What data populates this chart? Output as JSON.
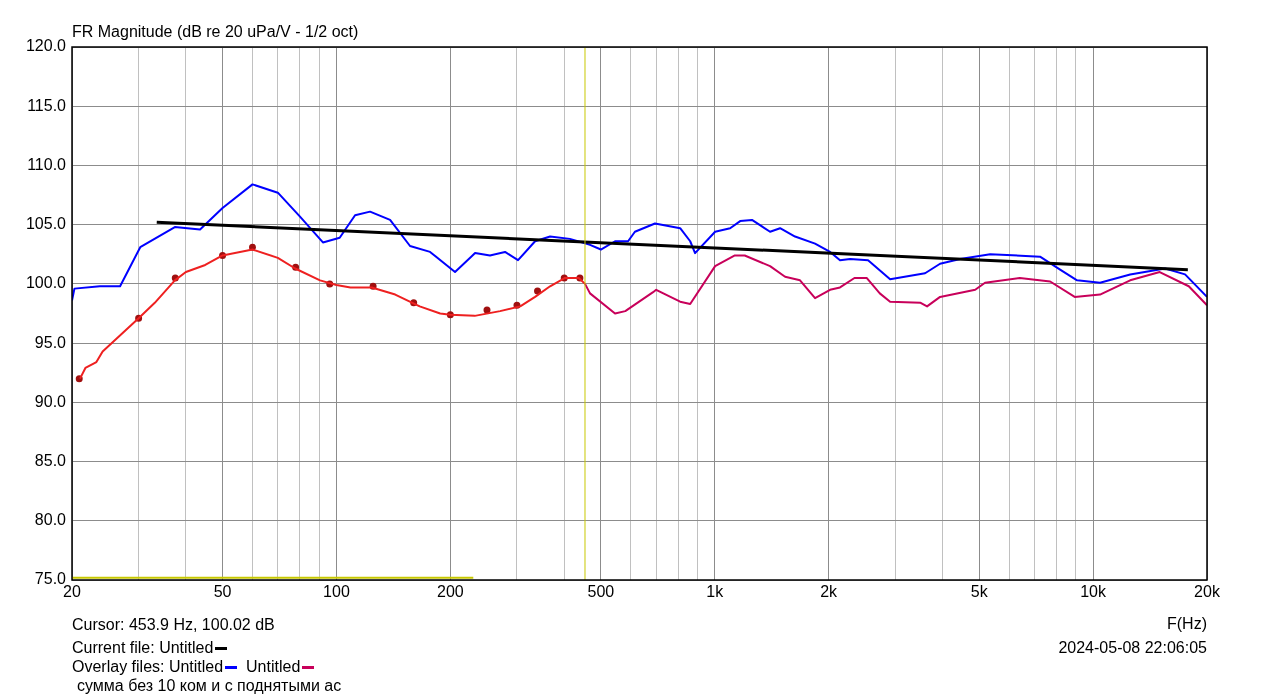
{
  "chart_data": {
    "type": "line",
    "title": "FR Magnitude (dB re 20 uPa/V - 1/2 oct)",
    "xlabel": "F(Hz)",
    "log": "x",
    "grid": true,
    "legend": "bottom left",
    "marker": "none",
    "line_style": "solid",
    "xlim": [
      20,
      20000
    ],
    "ylim": [
      75,
      120
    ],
    "xticks": [
      {
        "value": 20,
        "label": "20"
      },
      {
        "value": 30,
        "label": null
      },
      {
        "value": 40,
        "label": null
      },
      {
        "value": 50,
        "label": "50"
      },
      {
        "value": 60,
        "label": null
      },
      {
        "value": 70,
        "label": null
      },
      {
        "value": 80,
        "label": null
      },
      {
        "value": 90,
        "label": null
      },
      {
        "value": 100,
        "label": "100"
      },
      {
        "value": 200,
        "label": "200"
      },
      {
        "value": 300,
        "label": null
      },
      {
        "value": 400,
        "label": null
      },
      {
        "value": 500,
        "label": "500"
      },
      {
        "value": 600,
        "label": null
      },
      {
        "value": 700,
        "label": null
      },
      {
        "value": 800,
        "label": null
      },
      {
        "value": 900,
        "label": null
      },
      {
        "value": 1000,
        "label": "1k"
      },
      {
        "value": 2000,
        "label": "2k"
      },
      {
        "value": 3000,
        "label": null
      },
      {
        "value": 4000,
        "label": null
      },
      {
        "value": 5000,
        "label": "5k"
      },
      {
        "value": 6000,
        "label": null
      },
      {
        "value": 7000,
        "label": null
      },
      {
        "value": 8000,
        "label": null
      },
      {
        "value": 9000,
        "label": null
      },
      {
        "value": 10000,
        "label": "10k"
      },
      {
        "value": 20000,
        "label": "20k"
      }
    ],
    "yticks": [
      {
        "value": 75,
        "label": "75.0"
      },
      {
        "value": 80,
        "label": "80.0"
      },
      {
        "value": 85,
        "label": "85.0"
      },
      {
        "value": 90,
        "label": "90.0"
      },
      {
        "value": 95,
        "label": "95.0"
      },
      {
        "value": 100,
        "label": "100.0"
      },
      {
        "value": 105,
        "label": "105.0"
      },
      {
        "value": 110,
        "label": "110.0"
      },
      {
        "value": 115,
        "label": "115.0"
      },
      {
        "value": 120,
        "label": "120.0"
      }
    ],
    "ref_lines": [
      {
        "axis": "x",
        "value": 453.9,
        "color": "#c8c800"
      }
    ],
    "annotations": [
      "Cursor: 453.9 Hz, 100.02 dB",
      "Current file:",
      "Overlay files:",
      "сумма без 10 ком и с поднятыми ас",
      "2024-05-08  22:06:05"
    ],
    "series": [
      {
        "name": "Untitled",
        "color": "#000000",
        "x": [
          33.5,
          17800
        ],
        "values": [
          105.2,
          101.2
        ]
      },
      {
        "name": "Untitled",
        "color": "#0000ff",
        "x": [
          20,
          20.3,
          23.7,
          26.8,
          30.3,
          37.4,
          43.6,
          50,
          60,
          70,
          80,
          92.1,
          102,
          112,
          122.7,
          138.6,
          156.5,
          176.8,
          205.8,
          232.5,
          254.6,
          279,
          302,
          335,
          367,
          414,
          468,
          500,
          545,
          590,
          615,
          695,
          810,
          861,
          887,
          1002,
          1098,
          1167,
          1254,
          1400,
          1488,
          1630,
          1841,
          2017,
          2143,
          2279,
          2542,
          2907,
          3596,
          3940,
          4450,
          5344,
          7240,
          8180,
          9070,
          10430,
          12530,
          15500,
          17500,
          20000
        ],
        "values": [
          98.6,
          99.6,
          99.8,
          99.8,
          103.1,
          104.8,
          104.6,
          106.4,
          108.4,
          107.7,
          105.7,
          103.5,
          103.9,
          105.8,
          106.1,
          105.4,
          103.2,
          102.7,
          101.0,
          102.6,
          102.4,
          102.7,
          102.0,
          103.6,
          104.0,
          103.8,
          103.3,
          102.9,
          103.6,
          103.6,
          104.4,
          105.1,
          104.7,
          103.6,
          102.6,
          104.4,
          104.7,
          105.3,
          105.4,
          104.4,
          104.7,
          104.0,
          103.4,
          102.7,
          102.0,
          102.1,
          102.0,
          100.4,
          100.9,
          101.7,
          102.1,
          102.5,
          102.3,
          101.2,
          100.3,
          100.1,
          100.8,
          101.3,
          100.8,
          98.9
        ]
      },
      {
        "color": "#ee2020",
        "x": [
          21,
          21.7,
          23.2,
          24.1,
          30,
          33.1,
          37.4,
          40,
          45,
          50,
          60,
          70,
          77.8,
          90.5,
          100,
          108.9,
          124,
          143,
          166,
          188,
          200,
          232,
          270.7,
          306,
          335,
          367,
          402,
          437,
          454
        ],
        "values": [
          92.0,
          92.9,
          93.4,
          94.3,
          97.1,
          98.4,
          100.3,
          101.0,
          101.6,
          102.4,
          102.9,
          102.2,
          101.3,
          100.3,
          99.9,
          99.7,
          99.7,
          99.1,
          98.1,
          97.5,
          97.4,
          97.3,
          97.7,
          98.1,
          98.9,
          99.8,
          100.5,
          100.5,
          100.0
        ]
      },
      {
        "name": "Untitled",
        "color": "#c8005a",
        "x": [
          454,
          468,
          545,
          580,
          687,
          700,
          810,
          861,
          1002,
          1130,
          1200,
          1400,
          1534,
          1680,
          1841,
          2017,
          2143,
          2340,
          2520,
          2730,
          2907,
          3500,
          3640,
          3940,
          4880,
          5180,
          6400,
          7700,
          8940,
          10430,
          12530,
          15000,
          17900,
          20000
        ],
        "values": [
          100.0,
          99.2,
          97.5,
          97.7,
          99.3,
          99.5,
          98.5,
          98.3,
          101.5,
          102.4,
          102.4,
          101.5,
          100.6,
          100.3,
          98.8,
          99.5,
          99.7,
          100.5,
          100.5,
          99.2,
          98.5,
          98.4,
          98.1,
          98.9,
          99.5,
          100.1,
          100.5,
          100.2,
          98.9,
          99.1,
          100.3,
          101.0,
          99.8,
          98.2
        ]
      },
      {
        "type": "scatter",
        "marker": "circle",
        "color": "#a01010",
        "x": [
          20.9,
          30,
          37.5,
          50,
          60,
          78,
          96,
          125,
          160,
          200,
          250,
          300,
          340,
          400,
          440
        ],
        "values": [
          92.0,
          97.1,
          100.5,
          102.4,
          103.1,
          101.4,
          100.0,
          99.8,
          98.4,
          97.4,
          97.8,
          98.2,
          99.4,
          100.5,
          100.5
        ]
      },
      {
        "color": "#c8c800",
        "x": [
          20,
          230
        ],
        "values": [
          75.2,
          75.2
        ]
      }
    ]
  }
}
